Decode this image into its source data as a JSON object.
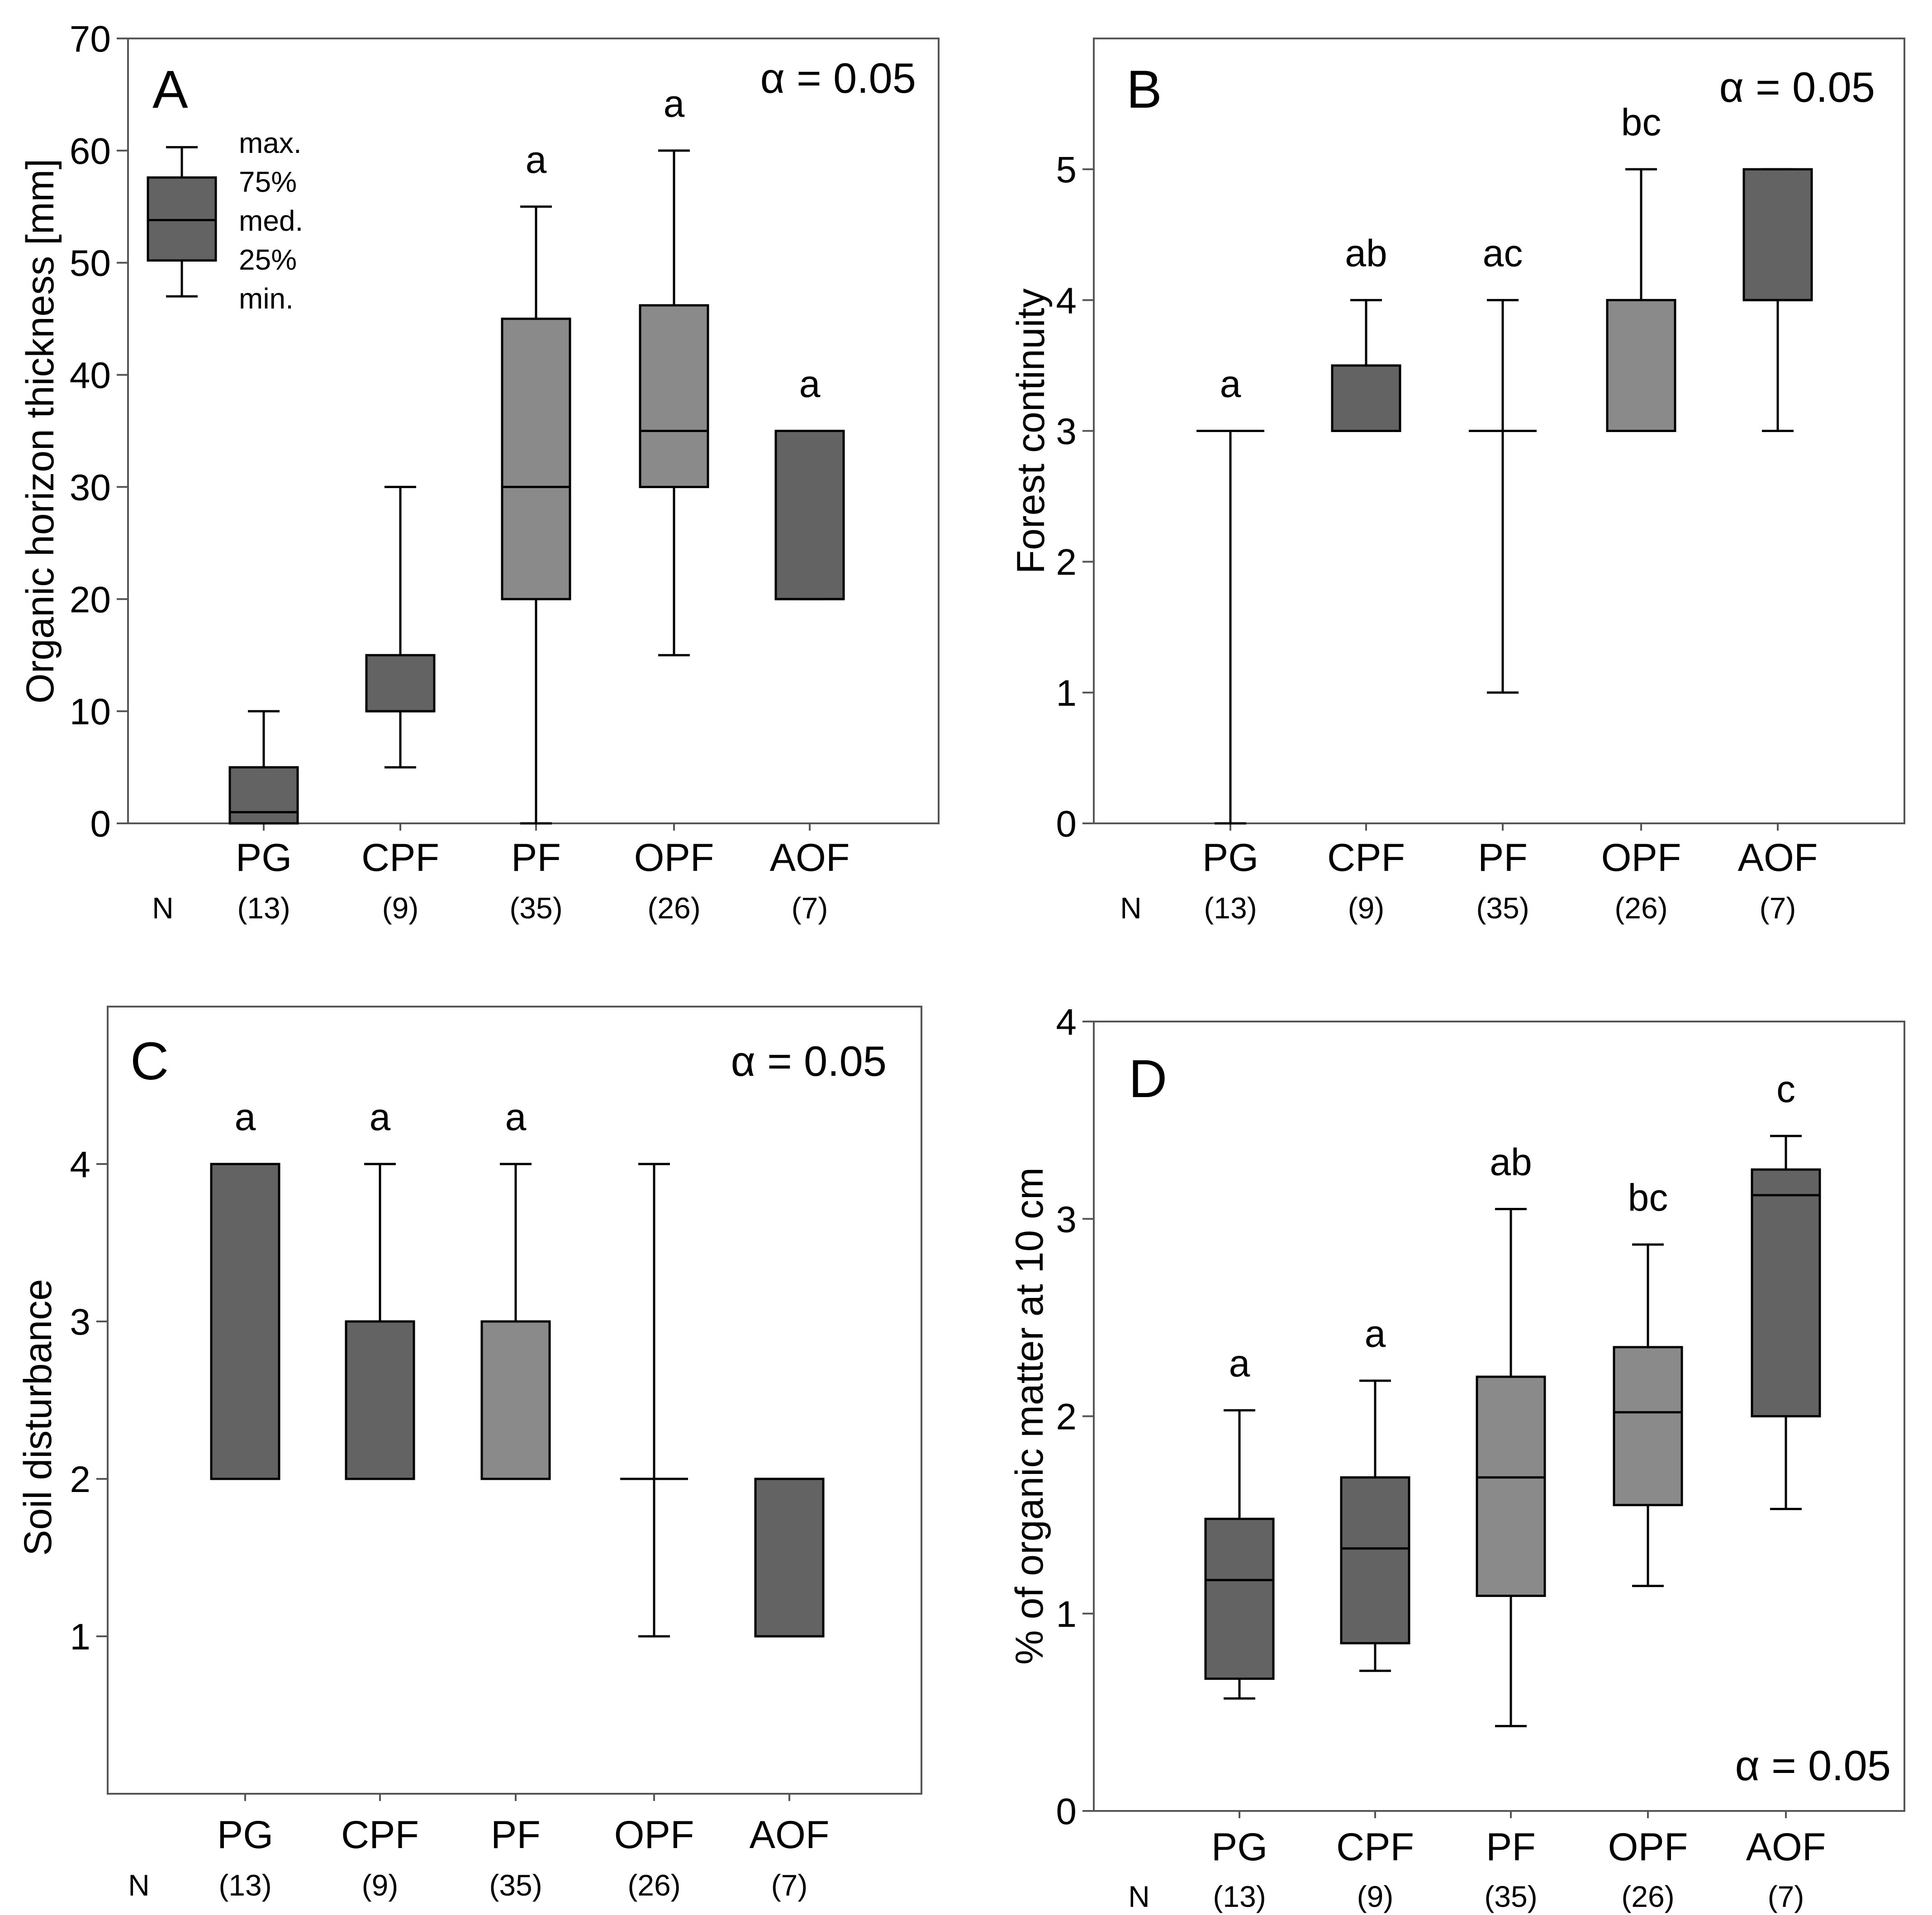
{
  "colors": {
    "dark": "#636363",
    "light": "#8a8a8a"
  },
  "n_label": "N",
  "legend_labels": [
    "max.",
    "75%",
    "med.",
    "25%",
    "min."
  ],
  "chart_data": [
    {
      "type": "box",
      "panel": "A",
      "alpha_label": "α = 0.05",
      "ylabel": "Organic horizon thickness [mm]",
      "ylim": [
        0,
        70
      ],
      "yticks": [
        0,
        10,
        20,
        30,
        40,
        50,
        60,
        70
      ],
      "categories": [
        "PG",
        "CPF",
        "PF",
        "OPF",
        "AOF"
      ],
      "n_labels": [
        "(13)",
        "(9)",
        "(35)",
        "(26)",
        "(7)"
      ],
      "sig_letters": [
        "",
        "",
        "a",
        "a",
        "a"
      ],
      "boxes": [
        {
          "min": 0,
          "q1": 0,
          "median": 1,
          "q3": 5,
          "max": 10,
          "shade": "dark"
        },
        {
          "min": 5,
          "q1": 10,
          "median": 10,
          "q3": 15,
          "max": 30,
          "shade": "dark"
        },
        {
          "min": 0,
          "q1": 20,
          "median": 30,
          "q3": 45,
          "max": 55,
          "shade": "light"
        },
        {
          "min": 15,
          "q1": 30,
          "median": 35,
          "q3": 46.2,
          "max": 60,
          "shade": "light"
        },
        {
          "min": 20,
          "q1": 20,
          "median": 20,
          "q3": 35,
          "max": 35,
          "shade": "dark"
        }
      ],
      "legend_box": {
        "min": 47,
        "q1": 50.2,
        "median": 53.8,
        "q3": 57.6,
        "max": 60.3
      }
    },
    {
      "type": "box",
      "panel": "B",
      "alpha_label": "α = 0.05",
      "ylabel": "Forest continuity",
      "ylim": [
        0,
        6
      ],
      "yticks": [
        0,
        1,
        2,
        3,
        4,
        5
      ],
      "categories": [
        "PG",
        "CPF",
        "PF",
        "OPF",
        "AOF"
      ],
      "n_labels": [
        "(13)",
        "(9)",
        "(35)",
        "(26)",
        "(7)"
      ],
      "sig_letters": [
        "a",
        "ab",
        "ac",
        "bc",
        ""
      ],
      "boxes": [
        {
          "min": 0,
          "q1": 3,
          "median": 3,
          "q3": 3,
          "max": 3,
          "shade": "dark"
        },
        {
          "min": 3,
          "q1": 3,
          "median": 3,
          "q3": 3.5,
          "max": 4,
          "shade": "dark"
        },
        {
          "min": 1,
          "q1": 3,
          "median": 3,
          "q3": 3,
          "max": 4,
          "shade": "light"
        },
        {
          "min": 3,
          "q1": 3,
          "median": 3,
          "q3": 4,
          "max": 5,
          "shade": "light"
        },
        {
          "min": 3,
          "q1": 4,
          "median": 4,
          "q3": 5,
          "max": 5,
          "shade": "dark"
        }
      ]
    },
    {
      "type": "box",
      "panel": "C",
      "alpha_label": "α = 0.05",
      "ylabel": "Soil disturbance",
      "ylim": [
        0,
        5
      ],
      "yticks": [
        1,
        2,
        3,
        4
      ],
      "categories": [
        "PG",
        "CPF",
        "PF",
        "OPF",
        "AOF"
      ],
      "n_labels": [
        "(13)",
        "(9)",
        "(35)",
        "(26)",
        "(7)"
      ],
      "sig_letters": [
        "a",
        "a",
        "a",
        "",
        ""
      ],
      "boxes": [
        {
          "min": 2,
          "q1": 2,
          "median": 2,
          "q3": 4,
          "max": 4,
          "shade": "dark"
        },
        {
          "min": 2,
          "q1": 2,
          "median": 2,
          "q3": 3,
          "max": 4,
          "shade": "dark"
        },
        {
          "min": 2,
          "q1": 2,
          "median": 2,
          "q3": 3,
          "max": 4,
          "shade": "light"
        },
        {
          "min": 1,
          "q1": 2,
          "median": 2,
          "q3": 2,
          "max": 4,
          "shade": "light"
        },
        {
          "min": 1,
          "q1": 1,
          "median": 1,
          "q3": 2,
          "max": 2,
          "shade": "dark"
        }
      ]
    },
    {
      "type": "box",
      "panel": "D",
      "alpha_label": "α = 0.05",
      "ylabel": "% of organic matter at 10 cm",
      "ylim": [
        0,
        4
      ],
      "yticks": [
        0,
        1,
        2,
        3,
        4
      ],
      "categories": [
        "PG",
        "CPF",
        "PF",
        "OPF",
        "AOF"
      ],
      "n_labels": [
        "(13)",
        "(9)",
        "(35)",
        "(26)",
        "(7)"
      ],
      "sig_letters": [
        "a",
        "a",
        "ab",
        "bc",
        "c"
      ],
      "boxes": [
        {
          "min": 0.57,
          "q1": 0.67,
          "median": 1.17,
          "q3": 1.48,
          "max": 2.03,
          "shade": "dark"
        },
        {
          "min": 0.71,
          "q1": 0.85,
          "median": 1.33,
          "q3": 1.69,
          "max": 2.18,
          "shade": "dark"
        },
        {
          "min": 0.43,
          "q1": 1.09,
          "median": 1.69,
          "q3": 2.2,
          "max": 3.05,
          "shade": "light"
        },
        {
          "min": 1.14,
          "q1": 1.55,
          "median": 2.02,
          "q3": 2.35,
          "max": 2.87,
          "shade": "light"
        },
        {
          "min": 1.53,
          "q1": 2.0,
          "median": 3.12,
          "q3": 3.25,
          "max": 3.42,
          "shade": "dark"
        }
      ]
    }
  ]
}
